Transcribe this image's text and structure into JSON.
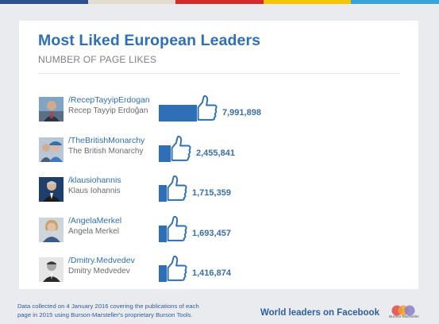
{
  "colors": {
    "accent": "#2f6fb5",
    "stripes": [
      "#2c4f92",
      "#e2dcd0",
      "#d62b2b",
      "#f4c400",
      "#35a4dd"
    ]
  },
  "header": {
    "title": "Most Liked European Leaders",
    "subtitle": "NUMBER OF PAGE LIKES"
  },
  "chart_data": {
    "type": "bar",
    "title": "Most Liked European Leaders",
    "ylabel": "NUMBER OF PAGE LIKES",
    "categories": [
      "/RecepTayyipErdogan",
      "/TheBritishMonarchy",
      "/klausiohannis",
      "/AngelaMerkel",
      "/Dmitry.Medvedev"
    ],
    "values": [
      7991898,
      2455841,
      1715359,
      1693457,
      1416874
    ],
    "rows": [
      {
        "handle": "/RecepTayyipErdogan",
        "name": "Recep Tayyip Erdoğan",
        "value": 7991898,
        "value_label": "7,991,898",
        "avatar_icon": "leader-portrait-icon"
      },
      {
        "handle": "/TheBritishMonarchy",
        "name": "The British Monarchy",
        "value": 2455841,
        "value_label": "2,455,841",
        "avatar_icon": "royal-couple-portrait-icon"
      },
      {
        "handle": "/klausiohannis",
        "name": "Klaus Iohannis",
        "value": 1715359,
        "value_label": "1,715,359",
        "avatar_icon": "leader-portrait-icon"
      },
      {
        "handle": "/AngelaMerkel",
        "name": "Angela Merkel",
        "value": 1693457,
        "value_label": "1,693,457",
        "avatar_icon": "leader-portrait-icon"
      },
      {
        "handle": "/Dmitry.Medvedev",
        "name": "Dmitry Medvedev",
        "value": 1416874,
        "value_label": "1,416,874",
        "avatar_icon": "leader-portrait-icon"
      }
    ]
  },
  "footer": {
    "note_line1": "Data collected on 4 January 2016 covering the publications of each",
    "note_line2": "page in 2015 using  Burson-Marsteller's proprietary Burson Tools.",
    "tagline": "World leaders on Facebook",
    "logo_text": "Burson-Marsteller",
    "logo_icon": "burson-marsteller-logo-icon"
  }
}
